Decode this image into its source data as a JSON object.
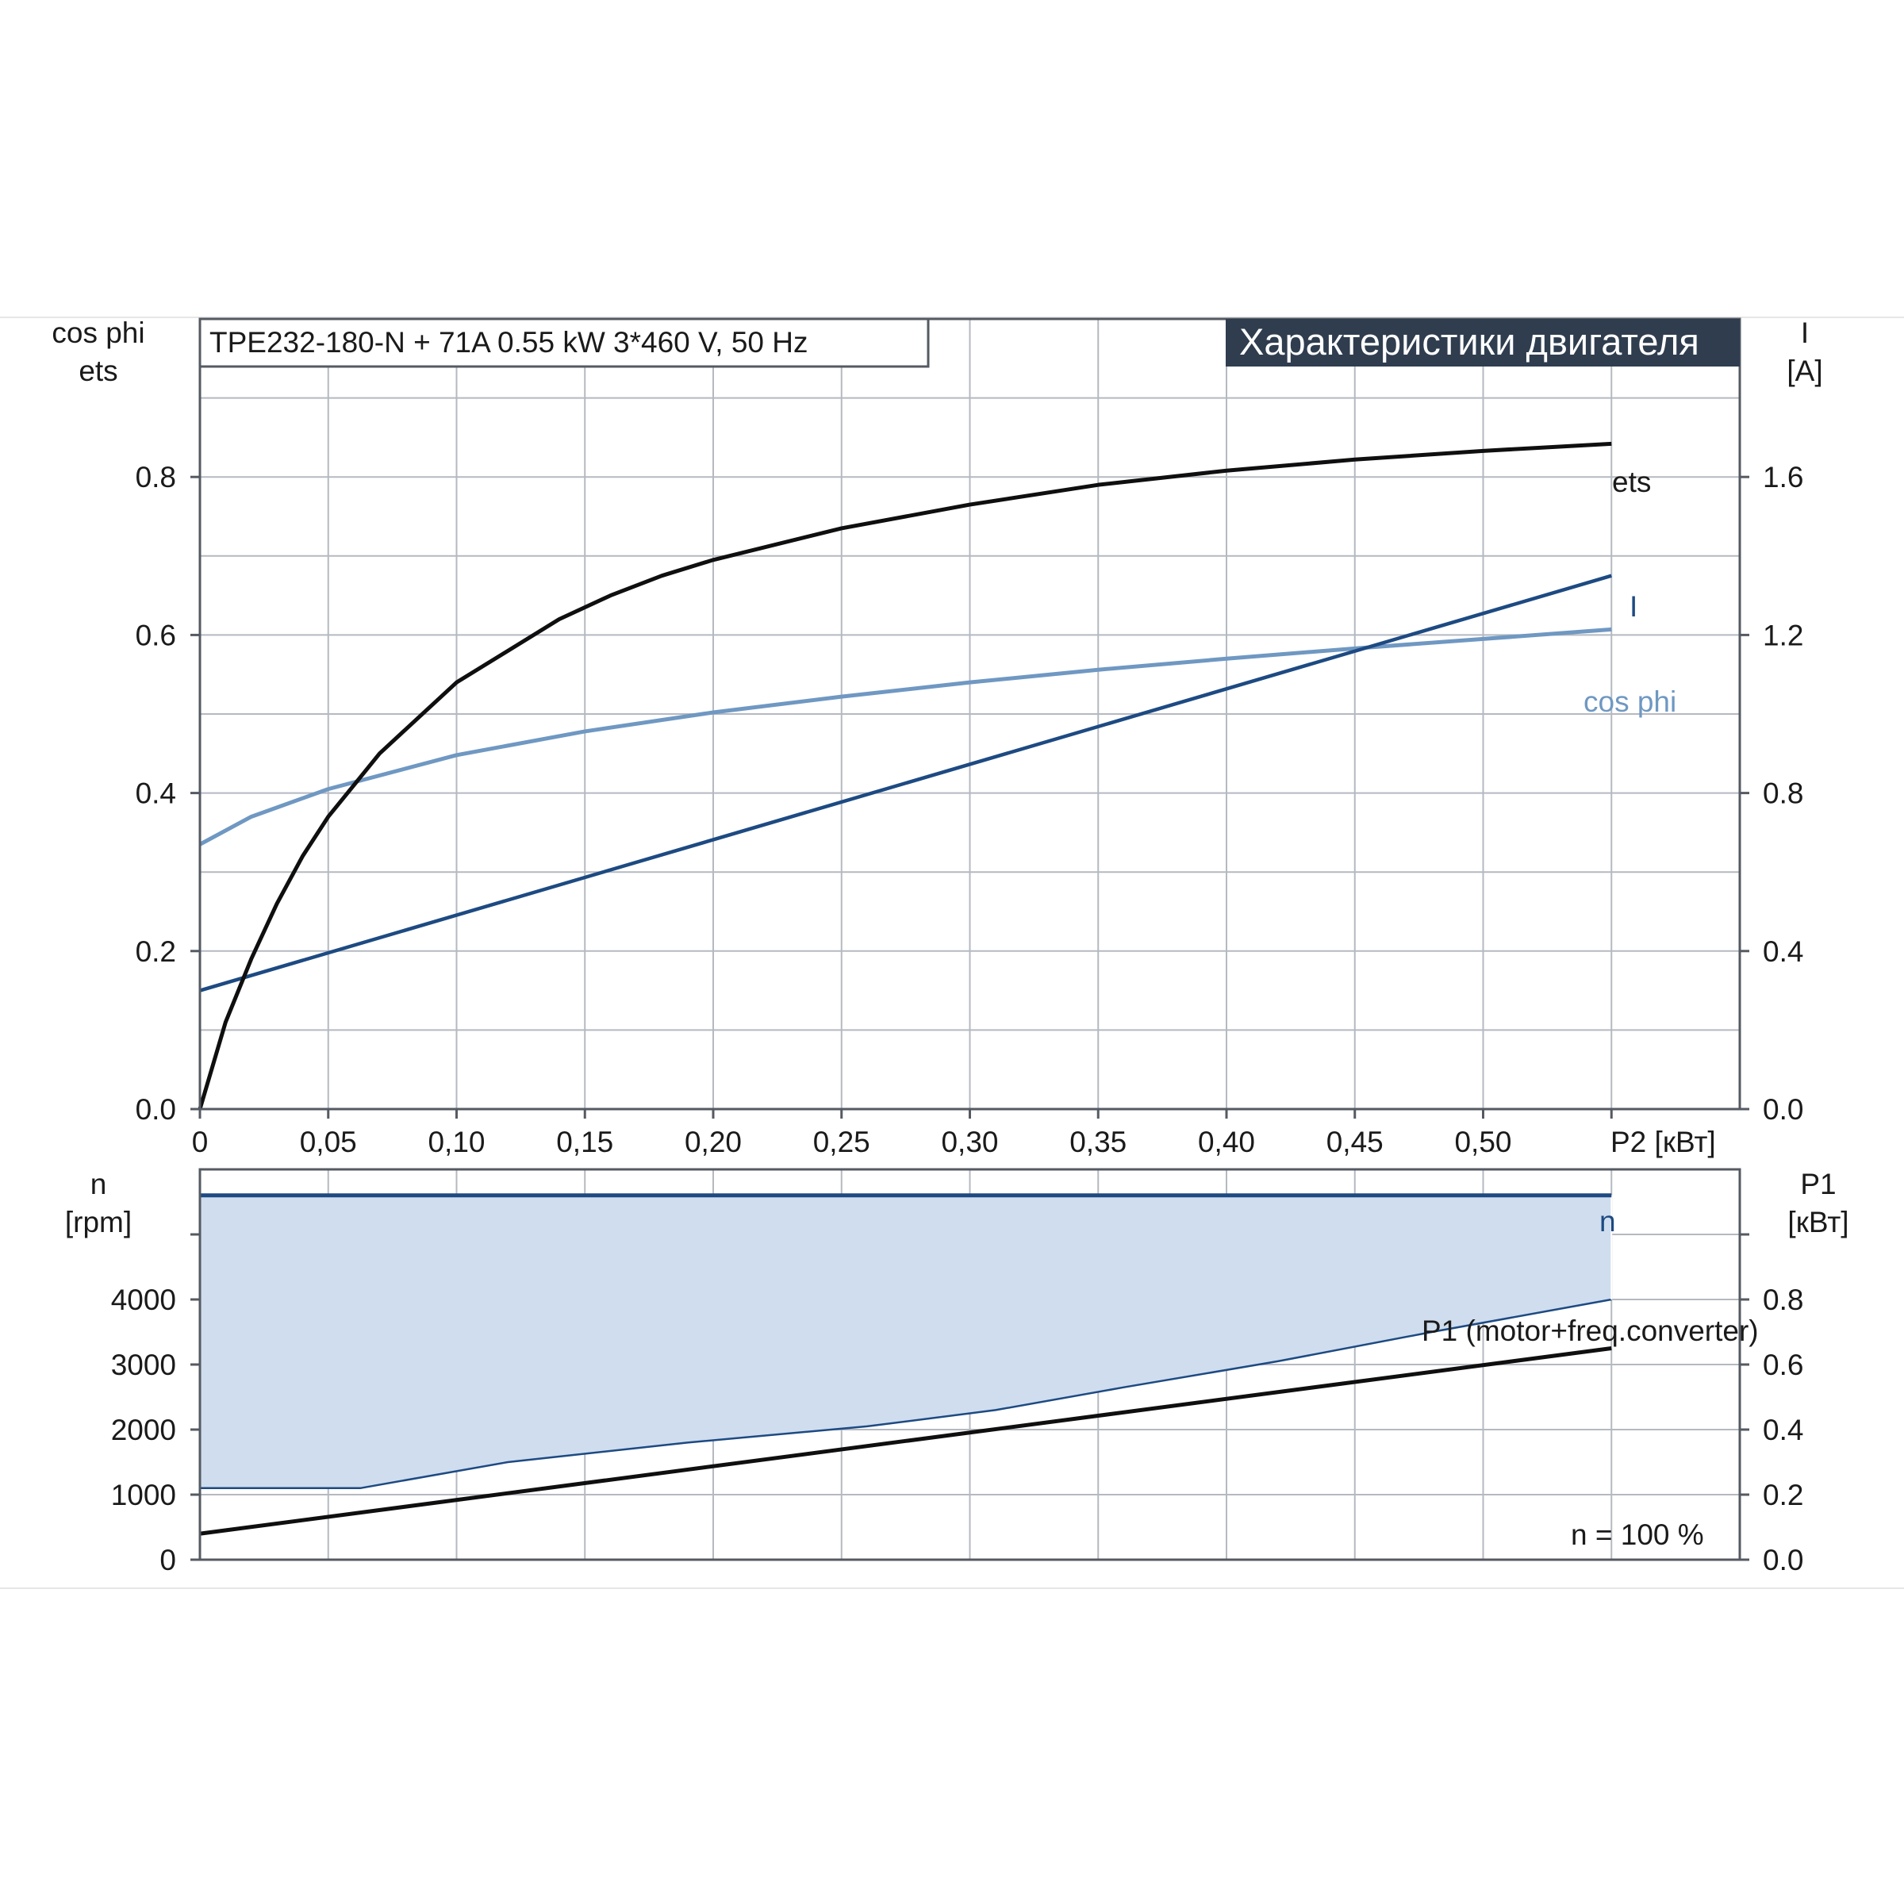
{
  "chart_title": "Характеристики двигателя",
  "model_label": "TPE232-180-N + 71A   0.55 kW   3*460 V, 50 Hz",
  "colors": {
    "title_bg": "#2f3d4f",
    "eta": "#0f0f0f",
    "current": "#1d4a82",
    "cos_phi": "#6f98c2",
    "speed": "#1d4a82",
    "speed_band": "#cfddee",
    "p1": "#0f0f0f"
  },
  "chart_data": [
    {
      "type": "line",
      "xlabel": "P2 [кВт]",
      "x_ticks": [
        "0",
        "0,05",
        "0,10",
        "0,15",
        "0,20",
        "0,25",
        "0,30",
        "0,35",
        "0,40",
        "0,45",
        "0,50"
      ],
      "xlim": [
        0,
        0.6
      ],
      "y_left": {
        "label_lines": [
          "cos phi",
          "ets"
        ],
        "ticks": [
          "0.0",
          "0.2",
          "0.4",
          "0.6",
          "0.8"
        ],
        "ylim": [
          0,
          1.0
        ]
      },
      "y_right": {
        "label_lines": [
          "I",
          "[A]"
        ],
        "ticks": [
          "0.0",
          "0.4",
          "0.8",
          "1.2",
          "1.6"
        ],
        "ylim": [
          0,
          2.0
        ]
      },
      "grid": true,
      "series": [
        {
          "name": "ets",
          "axis": "left",
          "x": [
            0,
            0.01,
            0.02,
            0.03,
            0.04,
            0.05,
            0.06,
            0.07,
            0.08,
            0.09,
            0.1,
            0.12,
            0.14,
            0.16,
            0.18,
            0.2,
            0.25,
            0.3,
            0.35,
            0.4,
            0.45,
            0.5,
            0.55
          ],
          "y": [
            0.0,
            0.11,
            0.19,
            0.26,
            0.32,
            0.37,
            0.41,
            0.45,
            0.48,
            0.51,
            0.54,
            0.58,
            0.62,
            0.65,
            0.675,
            0.695,
            0.735,
            0.765,
            0.79,
            0.808,
            0.822,
            0.833,
            0.842
          ]
        },
        {
          "name": "I",
          "axis": "right",
          "x": [
            0,
            0.55
          ],
          "y": [
            0.3,
            1.35
          ]
        },
        {
          "name": "cos phi",
          "axis": "left",
          "x": [
            0,
            0.02,
            0.05,
            0.1,
            0.15,
            0.2,
            0.25,
            0.3,
            0.35,
            0.4,
            0.45,
            0.5,
            0.55
          ],
          "y": [
            0.335,
            0.37,
            0.405,
            0.448,
            0.478,
            0.502,
            0.522,
            0.54,
            0.556,
            0.57,
            0.583,
            0.595,
            0.607
          ]
        }
      ]
    },
    {
      "type": "line",
      "xlim": [
        0,
        0.6
      ],
      "y_left": {
        "label_lines": [
          "n",
          "[rpm]"
        ],
        "ticks": [
          "0",
          "1000",
          "2000",
          "3000",
          "4000"
        ],
        "ylim": [
          0,
          6000
        ]
      },
      "y_right": {
        "label_lines": [
          "P1",
          "[кВт]"
        ],
        "ticks": [
          "0.0",
          "0.2",
          "0.4",
          "0.6",
          "0.8"
        ],
        "ylim": [
          0,
          1.2
        ]
      },
      "grid": true,
      "annotation": "n = 100 %",
      "series": [
        {
          "name": "n",
          "axis": "left",
          "x": [
            0,
            0.55
          ],
          "y": [
            5600,
            5600
          ]
        },
        {
          "name": "P1 (motor+freq.converter)",
          "axis": "right",
          "x": [
            0,
            0.55
          ],
          "y": [
            0.08,
            0.65
          ]
        },
        {
          "name": "P1 upper limit",
          "axis": "right",
          "legend": false,
          "x": [
            0,
            0.0625,
            0.12,
            0.19,
            0.26,
            0.31,
            0.36,
            0.42,
            0.48,
            0.55
          ],
          "y": [
            0.22,
            0.22,
            0.3,
            0.36,
            0.41,
            0.46,
            0.53,
            0.61,
            0.7,
            0.8
          ]
        }
      ]
    }
  ]
}
